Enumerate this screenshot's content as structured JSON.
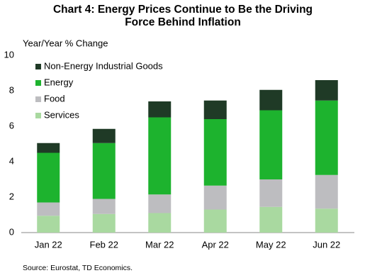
{
  "chart_data": {
    "type": "stacked-bar",
    "title": "Chart 4: Energy Prices Continue to Be the Driving Force Behind Inflation",
    "title_lines": [
      "Chart 4: Energy Prices Continue to Be the Driving",
      "Force Behind Inflation"
    ],
    "y_label": "Year/Year % Change",
    "source": "Source: Eurostat, TD Economics.",
    "categories": [
      "Jan 22",
      "Feb 22",
      "Mar 22",
      "Apr 22",
      "May 22",
      "Jun 22"
    ],
    "series": [
      {
        "name": "Services",
        "color": "#a9d9a0",
        "values": [
          0.95,
          1.05,
          1.1,
          1.3,
          1.45,
          1.35
        ]
      },
      {
        "name": "Food",
        "color": "#bdbdc0",
        "values": [
          0.75,
          0.85,
          1.05,
          1.35,
          1.55,
          1.9
        ]
      },
      {
        "name": "Energy",
        "color": "#1db32e",
        "values": [
          2.8,
          3.15,
          4.35,
          3.75,
          3.9,
          4.2
        ]
      },
      {
        "name": "Non-Energy Industrial Goods",
        "color": "#1f3a26",
        "values": [
          0.55,
          0.8,
          0.9,
          1.05,
          1.15,
          1.15
        ]
      }
    ],
    "ylim": [
      0,
      10
    ],
    "yticks": [
      0,
      2,
      4,
      6,
      8,
      10
    ],
    "grid": false,
    "legend": "upper left"
  }
}
